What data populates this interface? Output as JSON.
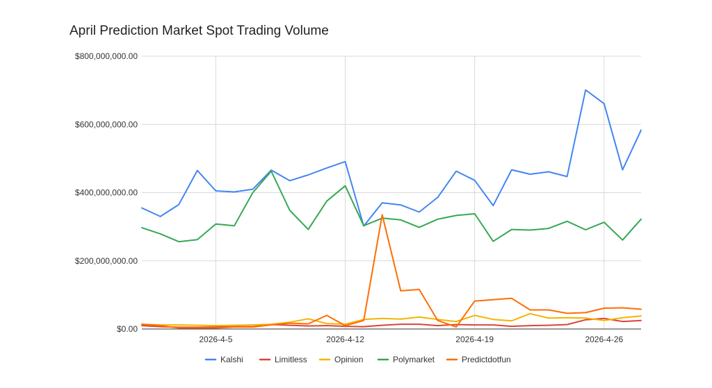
{
  "chart_data": {
    "type": "line",
    "title": "April Prediction Market Spot Trading Volume",
    "xlabel": "",
    "ylabel": "",
    "ylim": [
      0,
      800000000
    ],
    "y_ticks": [
      0,
      200000000,
      400000000,
      600000000,
      800000000
    ],
    "y_tick_labels": [
      "$0.00",
      "$200,000,000.00",
      "$400,000,000.00",
      "$600,000,000.00",
      "$800,000,000.00"
    ],
    "x": [
      "2026-4-1",
      "2026-4-2",
      "2026-4-3",
      "2026-4-4",
      "2026-4-5",
      "2026-4-6",
      "2026-4-7",
      "2026-4-8",
      "2026-4-9",
      "2026-4-10",
      "2026-4-11",
      "2026-4-12",
      "2026-4-13",
      "2026-4-14",
      "2026-4-15",
      "2026-4-16",
      "2026-4-17",
      "2026-4-18",
      "2026-4-19",
      "2026-4-20",
      "2026-4-21",
      "2026-4-22",
      "2026-4-23",
      "2026-4-24",
      "2026-4-25",
      "2026-4-26",
      "2026-4-27",
      "2026-4-28"
    ],
    "x_tick_labels": [
      "2026-4-5",
      "2026-4-12",
      "2026-4-19",
      "2026-4-26"
    ],
    "x_tick_values": [
      "2026-4-5",
      "2026-4-12",
      "2026-4-19",
      "2026-4-26"
    ],
    "grid": "vertical and horizontal",
    "legend_position": "bottom",
    "series": [
      {
        "name": "Kalshi",
        "color": "#4285f4",
        "values": [
          355000000,
          330000000,
          365000000,
          465000000,
          405000000,
          402000000,
          410000000,
          466000000,
          435000000,
          452000000,
          472000000,
          491000000,
          302000000,
          370000000,
          364000000,
          343000000,
          386000000,
          463000000,
          436000000,
          362000000,
          467000000,
          454000000,
          461000000,
          447000000,
          701000000,
          661000000,
          467000000,
          583000000
        ]
      },
      {
        "name": "Limitless",
        "color": "#db4437",
        "values": [
          10000000,
          7000000,
          5000000,
          5000000,
          6000000,
          7000000,
          7000000,
          13000000,
          11000000,
          9000000,
          10000000,
          8000000,
          7000000,
          11000000,
          14000000,
          14000000,
          10000000,
          13000000,
          12000000,
          12000000,
          8000000,
          10000000,
          11000000,
          13000000,
          27000000,
          31000000,
          22000000,
          25000000
        ]
      },
      {
        "name": "Opinion",
        "color": "#f4b400",
        "values": [
          14000000,
          12000000,
          12000000,
          11000000,
          10000000,
          11000000,
          12000000,
          14000000,
          20000000,
          30000000,
          16000000,
          14000000,
          28000000,
          31000000,
          29000000,
          35000000,
          28000000,
          22000000,
          40000000,
          28000000,
          24000000,
          45000000,
          32000000,
          33000000,
          32000000,
          25000000,
          33000000,
          38000000
        ]
      },
      {
        "name": "Polymarket",
        "color": "#34a853",
        "values": [
          297000000,
          279000000,
          256000000,
          262000000,
          308000000,
          303000000,
          400000000,
          463000000,
          348000000,
          292000000,
          375000000,
          420000000,
          303000000,
          325000000,
          320000000,
          298000000,
          322000000,
          333000000,
          338000000,
          257000000,
          292000000,
          290000000,
          295000000,
          316000000,
          291000000,
          313000000,
          261000000,
          322000000
        ]
      },
      {
        "name": "Predictdotfun",
        "color": "#ff6d01",
        "values": [
          14000000,
          10000000,
          3000000,
          3000000,
          3000000,
          6000000,
          6000000,
          12000000,
          17000000,
          15000000,
          40000000,
          10000000,
          25000000,
          335000000,
          112000000,
          116000000,
          25000000,
          6000000,
          82000000,
          86000000,
          90000000,
          56000000,
          56000000,
          46000000,
          48000000,
          61000000,
          62000000,
          58000000
        ]
      }
    ]
  }
}
